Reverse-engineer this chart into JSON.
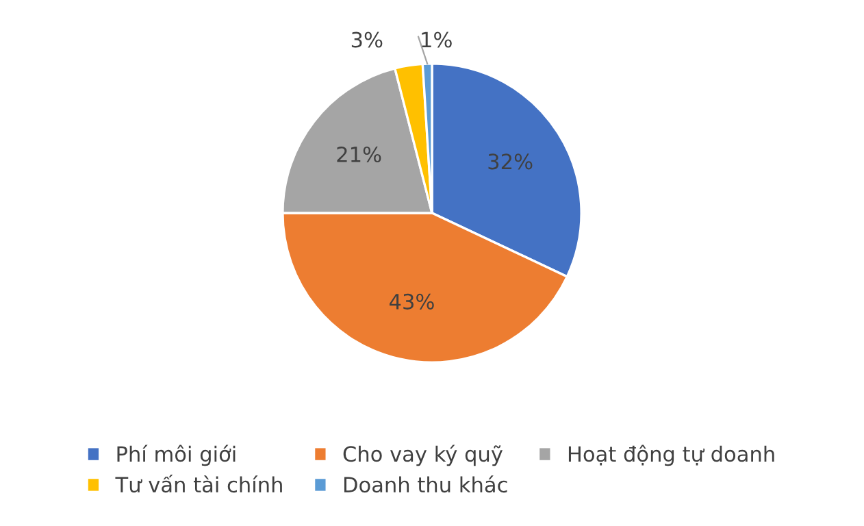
{
  "chart_data": {
    "type": "pie",
    "categories": [
      "Phí môi giới",
      "Cho vay ký quỹ",
      "Hoạt động tự doanh",
      "Tư vấn tài chính",
      "Doanh thu khác"
    ],
    "values": [
      32,
      43,
      21,
      3,
      1
    ],
    "colors": [
      "#4472c4",
      "#ed7d31",
      "#a5a5a5",
      "#ffc000",
      "#5b9bd5"
    ],
    "value_labels": [
      "32%",
      "43%",
      "21%",
      "3%",
      "1%"
    ],
    "legend": "bottom"
  }
}
